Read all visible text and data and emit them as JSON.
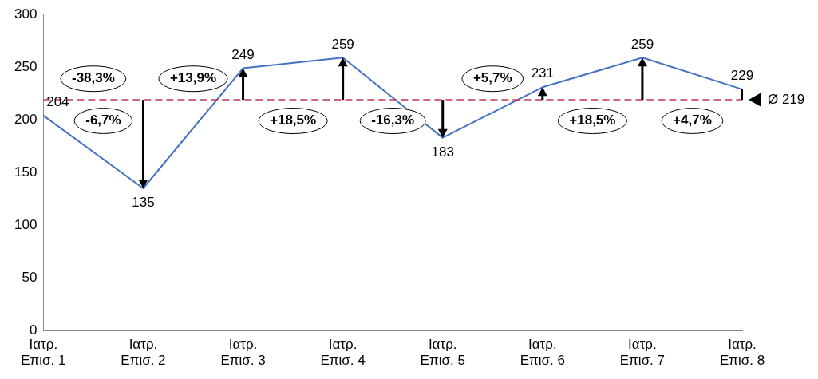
{
  "chart_data": {
    "type": "line",
    "categories": [
      "Ιατρ. Επισ. 1",
      "Ιατρ. Επισ. 2",
      "Ιατρ. Επισ. 3",
      "Ιατρ. Επισ. 4",
      "Ιατρ. Επισ. 5",
      "Ιατρ. Επισ. 6",
      "Ιατρ. Επισ. 7",
      "Ιατρ. Επισ. 8"
    ],
    "series": [
      {
        "color": "#4472c4",
        "values": [
          204,
          135,
          249,
          259,
          183,
          231,
          259,
          229
        ]
      }
    ],
    "ylim": [
      0,
      300
    ],
    "yticks": [
      0,
      50,
      100,
      150,
      200,
      250,
      300
    ],
    "grid": false,
    "legend": false,
    "marker": "none",
    "line_style": "solid",
    "data_labels": true,
    "ref_lines": [
      {
        "axis": "y",
        "value": 219,
        "label": "Ø 219",
        "color": "#c0395a",
        "line_style": "dashed"
      }
    ],
    "annotations": [
      "-6,7%",
      "-38,3%",
      "+13,9%",
      "+18,5%",
      "-16,3%",
      "+5,7%",
      "+18,5%",
      "+4,7%"
    ]
  }
}
